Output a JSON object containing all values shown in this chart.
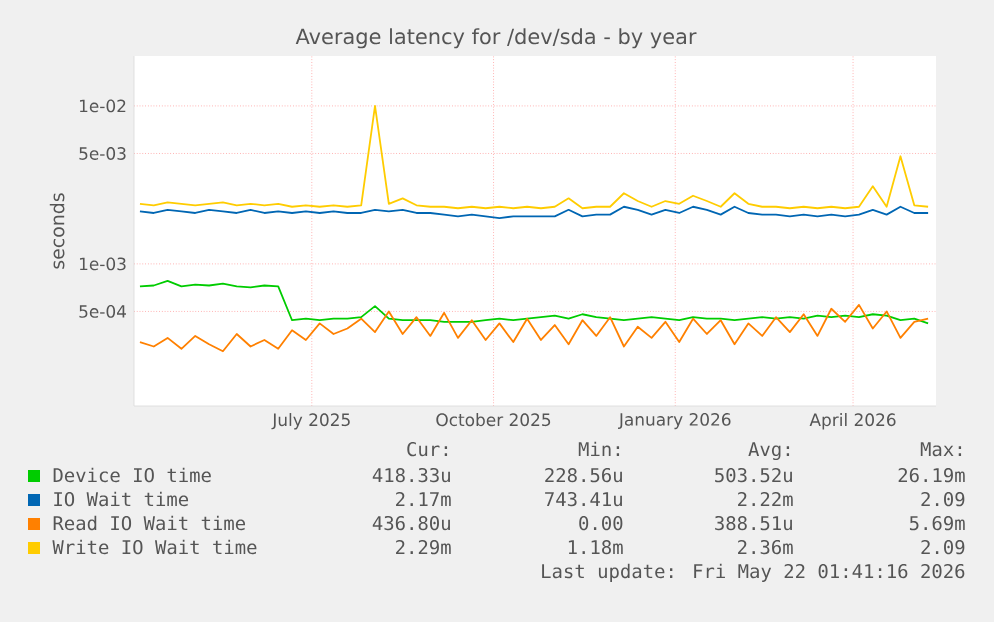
{
  "chart_data": {
    "type": "line",
    "title": "Average latency for /dev/sda - by year",
    "ylabel": "seconds",
    "log": true,
    "grid": true,
    "legend": "bottom",
    "ylim": [
      0.000126,
      0.0207
    ],
    "yticks": [
      {
        "value": 0.01,
        "label": "1e-02"
      },
      {
        "value": 0.005,
        "label": "5e-03"
      },
      {
        "value": 0.001,
        "label": "1e-03"
      },
      {
        "value": 0.0005,
        "label": "5e-04"
      }
    ],
    "xlim": [
      "2025-04-02",
      "2026-05-13"
    ],
    "xticks": [
      {
        "value": "2025-07-01",
        "label": "July 2025"
      },
      {
        "value": "2025-10-01",
        "label": "October 2025"
      },
      {
        "value": "2026-01-01",
        "label": "January 2026"
      },
      {
        "value": "2026-04-01",
        "label": "April 2026"
      }
    ],
    "x": [
      "2025-04-05",
      "2025-04-12",
      "2025-04-19",
      "2025-04-26",
      "2025-05-03",
      "2025-05-10",
      "2025-05-17",
      "2025-05-24",
      "2025-05-31",
      "2025-06-07",
      "2025-06-14",
      "2025-06-21",
      "2025-06-28",
      "2025-07-05",
      "2025-07-12",
      "2025-07-19",
      "2025-07-26",
      "2025-08-02",
      "2025-08-09",
      "2025-08-16",
      "2025-08-23",
      "2025-08-30",
      "2025-09-06",
      "2025-09-13",
      "2025-09-20",
      "2025-09-27",
      "2025-10-04",
      "2025-10-11",
      "2025-10-18",
      "2025-10-25",
      "2025-11-01",
      "2025-11-08",
      "2025-11-15",
      "2025-11-22",
      "2025-11-29",
      "2025-12-06",
      "2025-12-13",
      "2025-12-20",
      "2025-12-27",
      "2026-01-03",
      "2026-01-10",
      "2026-01-17",
      "2026-01-24",
      "2026-01-31",
      "2026-02-07",
      "2026-02-14",
      "2026-02-21",
      "2026-02-28",
      "2026-03-07",
      "2026-03-14",
      "2026-03-21",
      "2026-03-28",
      "2026-04-04",
      "2026-04-11",
      "2026-04-18",
      "2026-04-25",
      "2026-05-02",
      "2026-05-09"
    ],
    "series": [
      {
        "name": "Device IO time",
        "color": "#00cc00",
        "values": [
          0.00072,
          0.00073,
          0.00078,
          0.00072,
          0.00074,
          0.00073,
          0.00075,
          0.00072,
          0.00071,
          0.00073,
          0.00072,
          0.00044,
          0.00045,
          0.00044,
          0.00045,
          0.00045,
          0.00046,
          0.00054,
          0.00045,
          0.00044,
          0.00044,
          0.00044,
          0.00043,
          0.00043,
          0.00043,
          0.00044,
          0.00045,
          0.00044,
          0.00045,
          0.00046,
          0.00047,
          0.00045,
          0.00048,
          0.00046,
          0.00045,
          0.00044,
          0.00045,
          0.00046,
          0.00045,
          0.00044,
          0.00046,
          0.00045,
          0.00045,
          0.00044,
          0.00045,
          0.00046,
          0.00045,
          0.00046,
          0.00045,
          0.00047,
          0.00046,
          0.00047,
          0.00046,
          0.00048,
          0.00047,
          0.00044,
          0.00045,
          0.00042
        ]
      },
      {
        "name": "IO Wait time",
        "color": "#0066b3",
        "values": [
          0.00215,
          0.0021,
          0.0022,
          0.00215,
          0.0021,
          0.0022,
          0.00215,
          0.0021,
          0.0022,
          0.0021,
          0.00215,
          0.0021,
          0.00215,
          0.0021,
          0.00215,
          0.0021,
          0.0021,
          0.0022,
          0.00215,
          0.0022,
          0.0021,
          0.0021,
          0.00205,
          0.002,
          0.00205,
          0.002,
          0.00195,
          0.002,
          0.002,
          0.002,
          0.002,
          0.0022,
          0.002,
          0.00205,
          0.00205,
          0.0023,
          0.0022,
          0.00205,
          0.0022,
          0.0021,
          0.0023,
          0.0022,
          0.00205,
          0.0023,
          0.0021,
          0.00205,
          0.00205,
          0.002,
          0.00205,
          0.002,
          0.00205,
          0.002,
          0.00205,
          0.0022,
          0.00205,
          0.0023,
          0.0021,
          0.0021
        ]
      },
      {
        "name": "Read IO Wait time",
        "color": "#ff8000",
        "values": [
          0.00032,
          0.0003,
          0.00034,
          0.00029,
          0.00035,
          0.00031,
          0.00028,
          0.00036,
          0.0003,
          0.00033,
          0.00029,
          0.00038,
          0.00033,
          0.00042,
          0.00036,
          0.00039,
          0.00045,
          0.00037,
          0.0005,
          0.00036,
          0.00046,
          0.00035,
          0.00049,
          0.00034,
          0.00044,
          0.00033,
          0.00042,
          0.00032,
          0.00045,
          0.00033,
          0.00041,
          0.00031,
          0.00044,
          0.00035,
          0.00046,
          0.0003,
          0.0004,
          0.00034,
          0.00043,
          0.00032,
          0.00045,
          0.00036,
          0.00044,
          0.00031,
          0.00042,
          0.00035,
          0.00046,
          0.00037,
          0.00048,
          0.00035,
          0.00052,
          0.00043,
          0.00055,
          0.00039,
          0.0005,
          0.00034,
          0.00043,
          0.00045
        ]
      },
      {
        "name": "Write IO Wait time",
        "color": "#ffcc00",
        "values": [
          0.0024,
          0.00235,
          0.00245,
          0.0024,
          0.00235,
          0.0024,
          0.00245,
          0.00235,
          0.0024,
          0.00235,
          0.0024,
          0.0023,
          0.00235,
          0.0023,
          0.00235,
          0.0023,
          0.00235,
          0.01,
          0.0024,
          0.0026,
          0.00235,
          0.0023,
          0.0023,
          0.00225,
          0.0023,
          0.00225,
          0.0023,
          0.00225,
          0.0023,
          0.00225,
          0.0023,
          0.0026,
          0.00225,
          0.0023,
          0.0023,
          0.0028,
          0.0025,
          0.0023,
          0.0025,
          0.0024,
          0.0027,
          0.0025,
          0.0023,
          0.0028,
          0.0024,
          0.0023,
          0.0023,
          0.00225,
          0.0023,
          0.00225,
          0.0023,
          0.00225,
          0.0023,
          0.0031,
          0.0023,
          0.0048,
          0.00235,
          0.0023
        ]
      }
    ],
    "annotations": [
      "Cur:",
      "Min:",
      "Avg:",
      "Max:",
      "418.33u",
      "228.56u",
      "503.52u",
      "26.19m",
      "2.17m",
      "743.41u",
      "2.22m",
      "2.09",
      "436.80u",
      "0.00",
      "388.51u",
      "5.69m",
      "2.29m",
      "1.18m",
      "2.36m",
      "2.09",
      "Last update: Fri May 22 01:41:16 2026"
    ]
  }
}
